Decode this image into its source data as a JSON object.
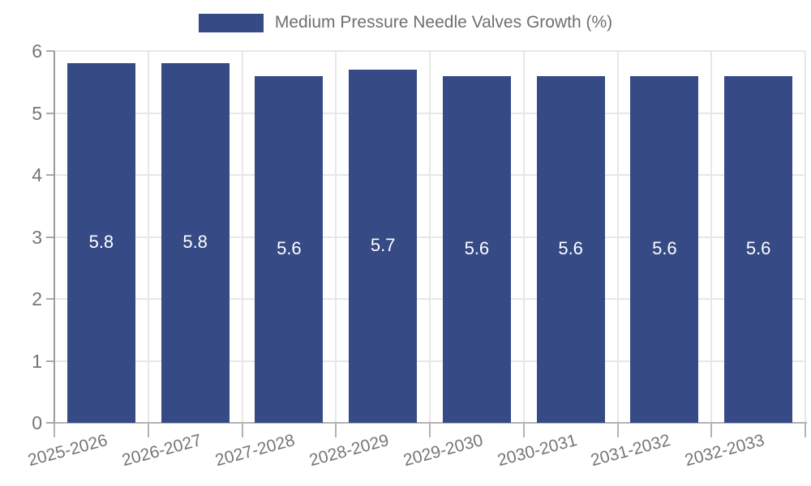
{
  "legend": {
    "label": "Medium Pressure Needle Valves Growth (%)"
  },
  "colors": {
    "bar": "#364a85",
    "grid": "#e7e7e7",
    "axis_line": "#b3b3b3",
    "spine": "#9b9b9b",
    "tick_text": "#757575",
    "legend_text": "#6f6f6f",
    "bar_label_text": "#ffffff"
  },
  "chart_data": {
    "type": "bar",
    "title": "",
    "series_name": "Medium Pressure Needle Valves Growth (%)",
    "categories": [
      "2025-2026",
      "2026-2027",
      "2027-2028",
      "2028-2029",
      "2029-2030",
      "2030-2031",
      "2031-2032",
      "2032-2033"
    ],
    "values": [
      5.8,
      5.8,
      5.6,
      5.7,
      5.6,
      5.6,
      5.6,
      5.6
    ],
    "bar_value_labels": [
      "5.8",
      "5.8",
      "5.6",
      "5.7",
      "5.6",
      "5.6",
      "5.6",
      "5.6"
    ],
    "xlabel": "",
    "ylabel": "",
    "ylim": [
      0,
      6
    ],
    "yticks": [
      0,
      1,
      2,
      3,
      4,
      5,
      6
    ],
    "grid": true,
    "legend_position": "top-center",
    "x_label_rotation_deg": -15
  }
}
